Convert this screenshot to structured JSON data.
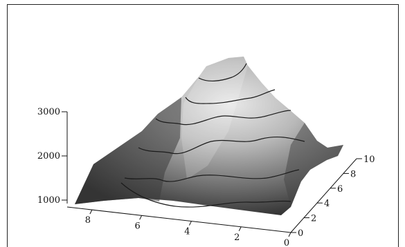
{
  "chart_data": {
    "type": "surface3d",
    "title": "",
    "xlabel": "",
    "ylabel": "",
    "zlabel": "",
    "x_ticks": [
      "8",
      "6",
      "4",
      "2",
      "0"
    ],
    "y_ticks": [
      "0",
      "2",
      "4",
      "6",
      "8",
      "10"
    ],
    "z_ticks": [
      "1000",
      "2000",
      "3000"
    ],
    "xlim": [
      0,
      9
    ],
    "ylim": [
      0,
      10
    ],
    "zlim": [
      800,
      3600
    ],
    "contour_levels": [
      1300,
      1700,
      2100,
      2500,
      2900,
      3300
    ],
    "peak": {
      "x": 3.6,
      "y": 7.0,
      "z": 3450
    },
    "grid": false,
    "colormap": "grayscale"
  }
}
